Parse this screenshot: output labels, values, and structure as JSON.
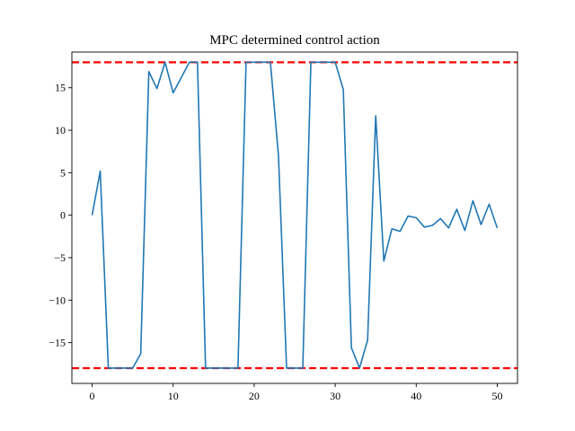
{
  "chart_data": {
    "type": "line",
    "title": "MPC determined control action",
    "xlabel": "",
    "ylabel": "",
    "xlim": [
      -2.5,
      52.5
    ],
    "ylim": [
      -19.8,
      19.2
    ],
    "xticks": [
      0,
      10,
      20,
      30,
      40,
      50
    ],
    "yticks": [
      -15,
      -10,
      -5,
      0,
      5,
      10,
      15
    ],
    "grid": false,
    "legend": "none",
    "colors": {
      "series": "#1f77b4",
      "bounds": "#ff0000"
    },
    "series": [
      {
        "x": [
          0,
          1,
          2,
          3,
          4,
          5,
          6,
          7,
          8,
          9,
          10,
          11,
          12,
          13,
          14,
          15,
          16,
          17,
          18,
          19,
          20,
          21,
          22,
          23,
          24,
          25,
          26,
          27,
          28,
          29,
          30,
          31,
          32,
          33,
          34,
          35,
          36,
          37,
          38,
          39,
          40,
          41,
          42,
          43,
          44,
          45,
          46,
          47,
          48,
          49,
          50
        ],
        "values": [
          0,
          5.2,
          -18,
          -18,
          -18,
          -18,
          -16.3,
          16.9,
          14.9,
          18,
          14.4,
          16.2,
          18,
          18,
          -18,
          -18,
          -18,
          -18,
          -18,
          18,
          18,
          18,
          18,
          7,
          -18,
          -18,
          -18,
          18,
          18,
          18,
          18,
          14.8,
          -15.6,
          -18,
          -14.7,
          11.7,
          -5.4,
          -1.6,
          -1.9,
          -0.1,
          -0.3,
          -1.4,
          -1.2,
          -0.4,
          -1.5,
          0.7,
          -1.8,
          1.7,
          -1.1,
          1.3,
          -1.5
        ]
      }
    ],
    "bounds": [
      18,
      -18
    ]
  }
}
